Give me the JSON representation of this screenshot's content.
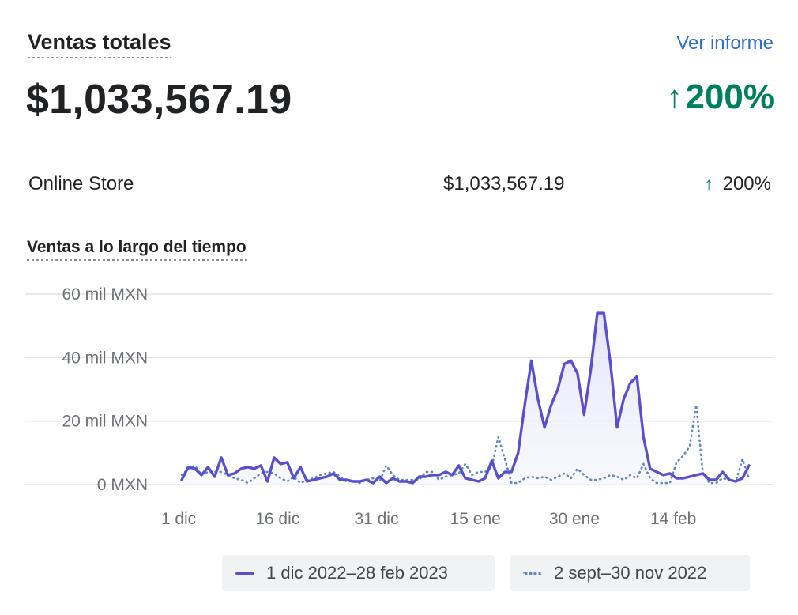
{
  "header": {
    "title": "Ventas totales",
    "report_link": "Ver informe",
    "total": "$1,033,567.19",
    "change": "200%"
  },
  "breakdown": [
    {
      "name": "Online Store",
      "value": "$1,033,567.19",
      "change": "200%"
    }
  ],
  "chart_section": {
    "title": "Ventas a lo largo del tiempo"
  },
  "colors": {
    "current": "#5850cf",
    "previous": "#5e88c4",
    "positive": "#007f5f",
    "link": "#2c6ecb",
    "area_fill": "#eef0fb"
  },
  "chart_data": {
    "type": "line",
    "title": "Ventas a lo largo del tiempo",
    "ylim": [
      0,
      60000
    ],
    "y_ticks": [
      {
        "value": 0,
        "label": "0 MXN"
      },
      {
        "value": 20000,
        "label": "20 mil MXN"
      },
      {
        "value": 40000,
        "label": "40 mil MXN"
      },
      {
        "value": 60000,
        "label": "60 mil MXN"
      }
    ],
    "x_ticks": [
      {
        "index": 0,
        "label": "1 dic"
      },
      {
        "index": 15,
        "label": "16 dic"
      },
      {
        "index": 30,
        "label": "31 dic"
      },
      {
        "index": 45,
        "label": "15 ene"
      },
      {
        "index": 60,
        "label": "30 ene"
      },
      {
        "index": 75,
        "label": "14 feb"
      }
    ],
    "grid": true,
    "legend_position": "bottom",
    "series": [
      {
        "name": "1 dic 2022–28 feb 2023",
        "style": "solid",
        "area": true,
        "values": [
          1500,
          5500,
          5000,
          3000,
          5500,
          2500,
          8500,
          3000,
          3500,
          5000,
          5500,
          5000,
          6000,
          1000,
          8500,
          6500,
          7000,
          2000,
          5500,
          1000,
          1500,
          2000,
          2500,
          3500,
          1500,
          1500,
          1000,
          1000,
          1500,
          500,
          2500,
          500,
          2000,
          1000,
          1000,
          500,
          2500,
          2500,
          3000,
          3000,
          4000,
          3000,
          6000,
          2000,
          1500,
          1000,
          2000,
          7500,
          2000,
          4000,
          4000,
          10000,
          25000,
          39000,
          27000,
          18000,
          25000,
          30000,
          38000,
          39000,
          35000,
          22000,
          36000,
          54000,
          54000,
          38000,
          18000,
          27000,
          32000,
          34000,
          15000,
          5000,
          4000,
          3000,
          3500,
          2000,
          2000,
          2500,
          3000,
          3500,
          1500,
          1500,
          4000,
          1500,
          1000,
          2000,
          6000
        ]
      },
      {
        "name": "2 sept–30 nov 2022",
        "style": "dotted",
        "area": false,
        "values": [
          3000,
          5000,
          6000,
          3000,
          4000,
          4000,
          4000,
          3000,
          2000,
          1500,
          500,
          2000,
          3500,
          4000,
          3500,
          2000,
          1000,
          2500,
          500,
          1500,
          2000,
          3000,
          3500,
          4000,
          2500,
          1000,
          1000,
          500,
          1500,
          2000,
          1000,
          6000,
          3000,
          1500,
          1500,
          1500,
          1500,
          4000,
          4000,
          1500,
          2500,
          3000,
          3500,
          6500,
          3000,
          4000,
          4000,
          5500,
          15000,
          8000,
          500,
          500,
          2000,
          2500,
          2000,
          2500,
          1500,
          2500,
          3500,
          2000,
          5000,
          3000,
          1500,
          1500,
          2000,
          3000,
          2500,
          1500,
          3000,
          2000,
          6500,
          2000,
          500,
          500,
          500,
          7000,
          9000,
          12000,
          25000,
          3500,
          500,
          500,
          2000,
          1500,
          1000,
          8000,
          2000
        ]
      }
    ]
  }
}
